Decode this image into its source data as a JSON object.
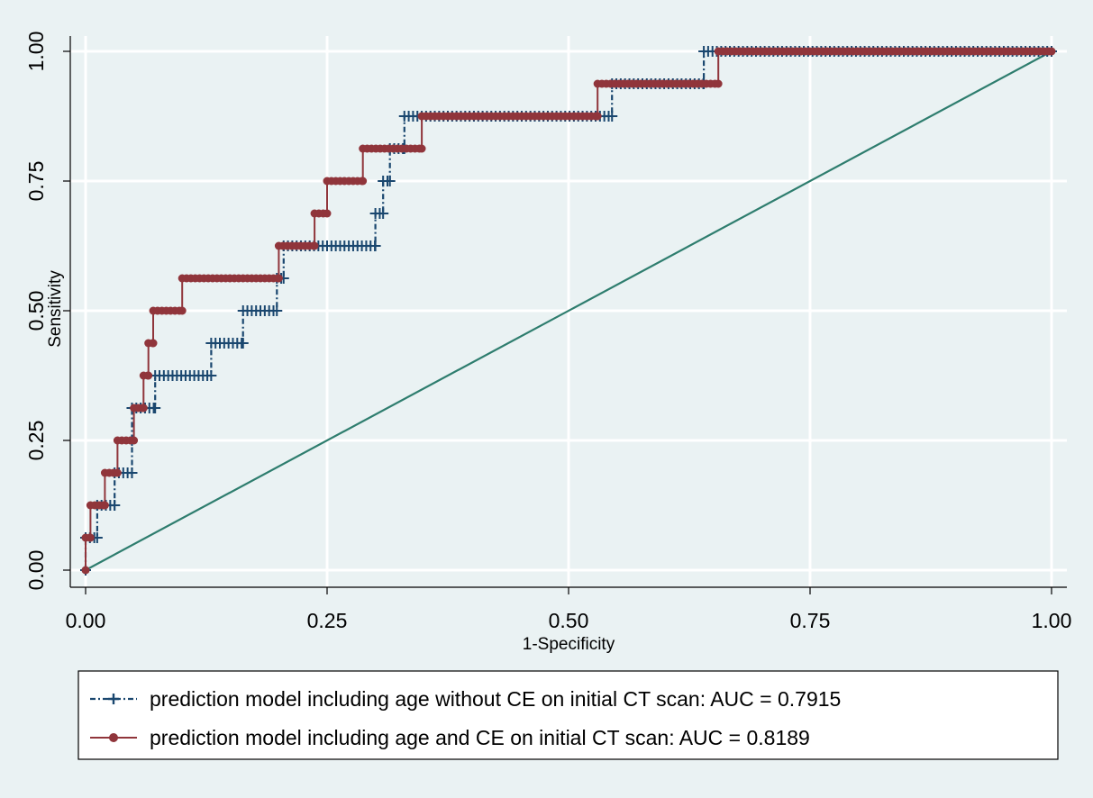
{
  "chart_data": {
    "type": "line",
    "xlabel": "1-Specificity",
    "ylabel": "Sensitivity",
    "xlim": [
      0,
      1
    ],
    "ylim": [
      0,
      1
    ],
    "x_ticks": [
      "0.00",
      "0.25",
      "0.50",
      "0.75",
      "1.00"
    ],
    "y_ticks": [
      "0.00",
      "0.25",
      "0.50",
      "0.75",
      "1.00"
    ],
    "grid": true,
    "legend_position": "bottom",
    "colors": {
      "series1": "#1a476f",
      "series2": "#90353b",
      "reference": "#2e7d6e",
      "background": "#eaf2f3",
      "grid": "#eaf2f3"
    },
    "series": [
      {
        "name": "prediction model including age without CE on initial CT scan: AUC = 0.7915",
        "style": "dash-dot with plus markers",
        "points": [
          [
            0,
            0
          ],
          [
            0,
            0.0625
          ],
          [
            0.012,
            0.0625
          ],
          [
            0.012,
            0.125
          ],
          [
            0.03,
            0.125
          ],
          [
            0.03,
            0.1875
          ],
          [
            0.048,
            0.1875
          ],
          [
            0.048,
            0.25
          ],
          [
            0.048,
            0.3125
          ],
          [
            0.072,
            0.3125
          ],
          [
            0.072,
            0.375
          ],
          [
            0.13,
            0.375
          ],
          [
            0.13,
            0.4375
          ],
          [
            0.163,
            0.4375
          ],
          [
            0.163,
            0.5
          ],
          [
            0.198,
            0.5
          ],
          [
            0.198,
            0.5625
          ],
          [
            0.205,
            0.5625
          ],
          [
            0.205,
            0.625
          ],
          [
            0.3,
            0.625
          ],
          [
            0.3,
            0.6875
          ],
          [
            0.308,
            0.6875
          ],
          [
            0.308,
            0.75
          ],
          [
            0.315,
            0.75
          ],
          [
            0.315,
            0.8125
          ],
          [
            0.33,
            0.8125
          ],
          [
            0.33,
            0.875
          ],
          [
            0.545,
            0.875
          ],
          [
            0.545,
            0.9375
          ],
          [
            0.64,
            0.9375
          ],
          [
            0.64,
            1
          ],
          [
            1,
            1
          ]
        ]
      },
      {
        "name": "prediction model including age and CE on initial CT scan: AUC = 0.8189",
        "style": "solid with dot markers",
        "points": [
          [
            0,
            0
          ],
          [
            0,
            0.0625
          ],
          [
            0.005,
            0.0625
          ],
          [
            0.005,
            0.125
          ],
          [
            0.02,
            0.125
          ],
          [
            0.02,
            0.1875
          ],
          [
            0.033,
            0.1875
          ],
          [
            0.033,
            0.25
          ],
          [
            0.05,
            0.25
          ],
          [
            0.05,
            0.3125
          ],
          [
            0.06,
            0.3125
          ],
          [
            0.06,
            0.375
          ],
          [
            0.065,
            0.375
          ],
          [
            0.065,
            0.4375
          ],
          [
            0.07,
            0.4375
          ],
          [
            0.07,
            0.5
          ],
          [
            0.1,
            0.5
          ],
          [
            0.1,
            0.5625
          ],
          [
            0.2,
            0.5625
          ],
          [
            0.2,
            0.625
          ],
          [
            0.237,
            0.625
          ],
          [
            0.237,
            0.6875
          ],
          [
            0.25,
            0.6875
          ],
          [
            0.25,
            0.75
          ],
          [
            0.287,
            0.75
          ],
          [
            0.287,
            0.8125
          ],
          [
            0.348,
            0.8125
          ],
          [
            0.348,
            0.875
          ],
          [
            0.53,
            0.875
          ],
          [
            0.53,
            0.9375
          ],
          [
            0.655,
            0.9375
          ],
          [
            0.655,
            1
          ],
          [
            1,
            1
          ]
        ]
      }
    ],
    "reference_line": [
      [
        0,
        0
      ],
      [
        1,
        1
      ]
    ]
  }
}
